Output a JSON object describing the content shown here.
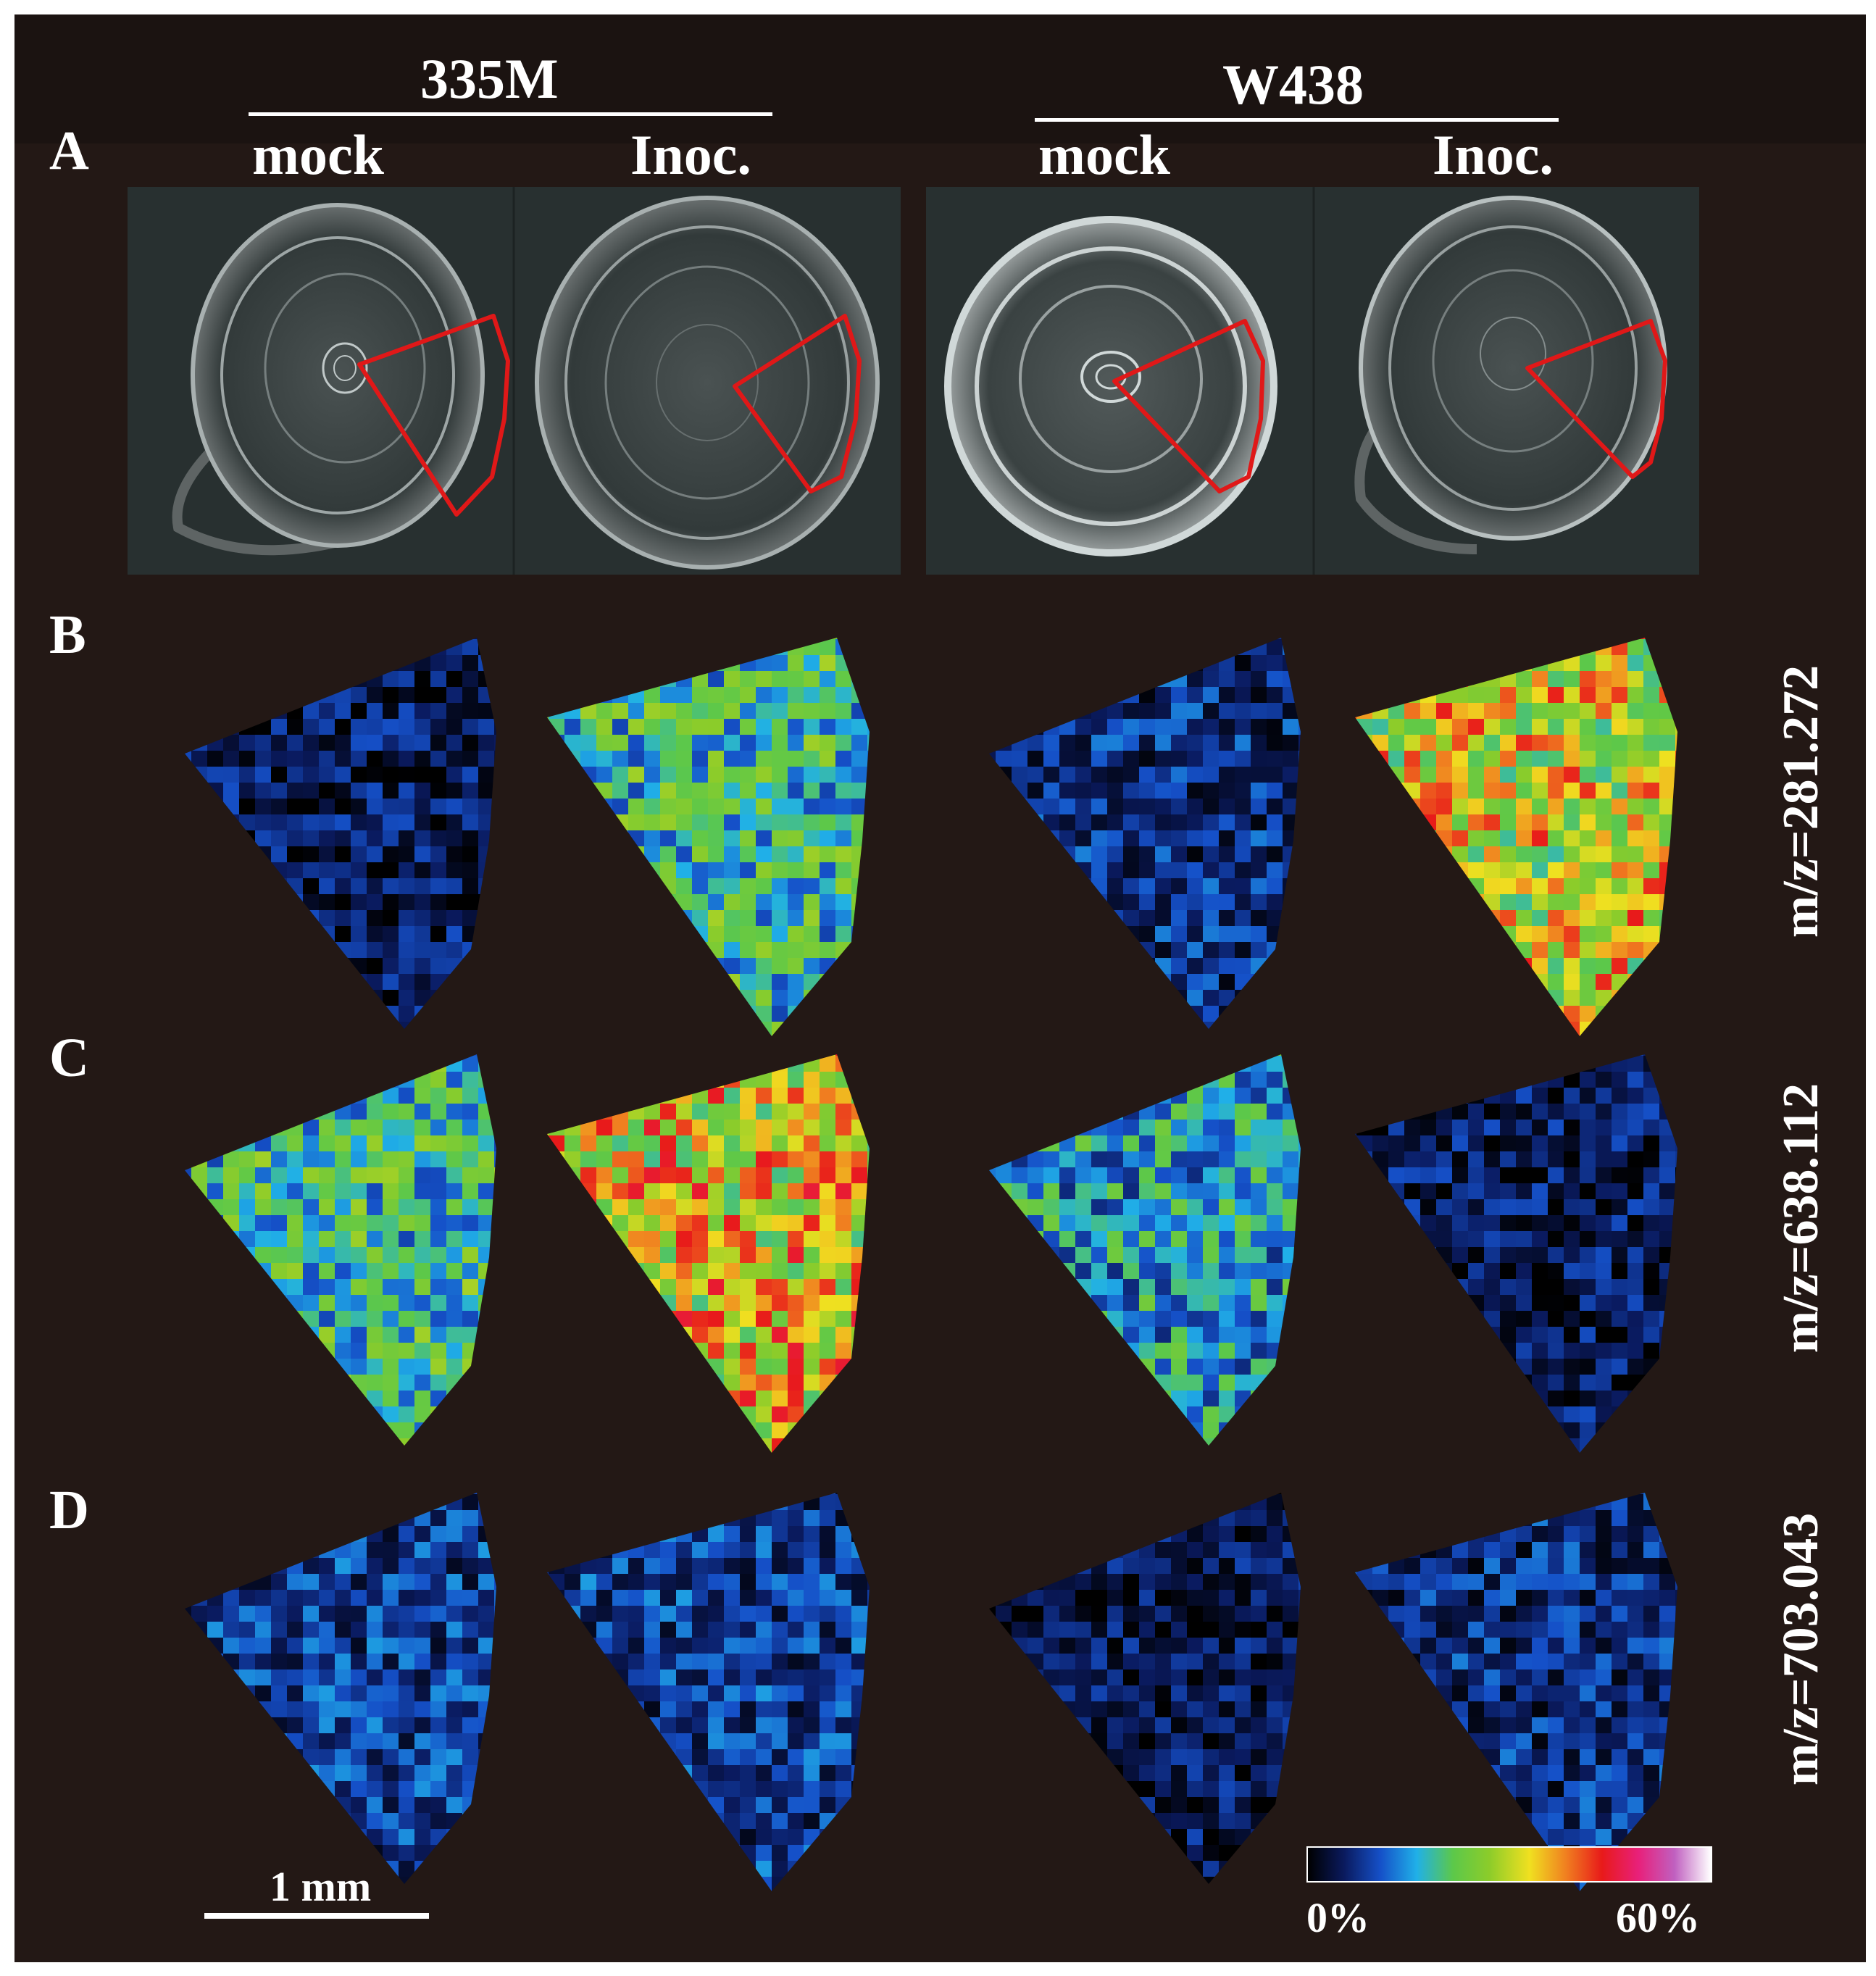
{
  "panel_labels": [
    "A",
    "B",
    "C",
    "D"
  ],
  "groups": [
    {
      "title": "335M",
      "columns": [
        "mock",
        "Inoc."
      ]
    },
    {
      "title": "W438",
      "columns": [
        "mock",
        "Inoc."
      ]
    }
  ],
  "mz_labels": [
    "m/z=281.272",
    "m/z=638.112",
    "m/z=703.043"
  ],
  "scale_bar": {
    "label": "1 mm"
  },
  "colorbar": {
    "min_label": "0%",
    "max_label": "60%",
    "colors": [
      "#000000",
      "#0a1a5e",
      "#1550c8",
      "#20b0e8",
      "#5cc84a",
      "#8ccc2a",
      "#f0e020",
      "#f08020",
      "#e81a1a",
      "#e8207a",
      "#c060c0",
      "#ffffff"
    ]
  },
  "intensity_maps": [
    {
      "row": "B",
      "levels": [
        0.08,
        0.32,
        0.12,
        0.52
      ]
    },
    {
      "row": "C",
      "levels": [
        0.32,
        0.54,
        0.26,
        0.08
      ]
    },
    {
      "row": "D",
      "levels": [
        0.14,
        0.14,
        0.07,
        0.12
      ]
    }
  ]
}
